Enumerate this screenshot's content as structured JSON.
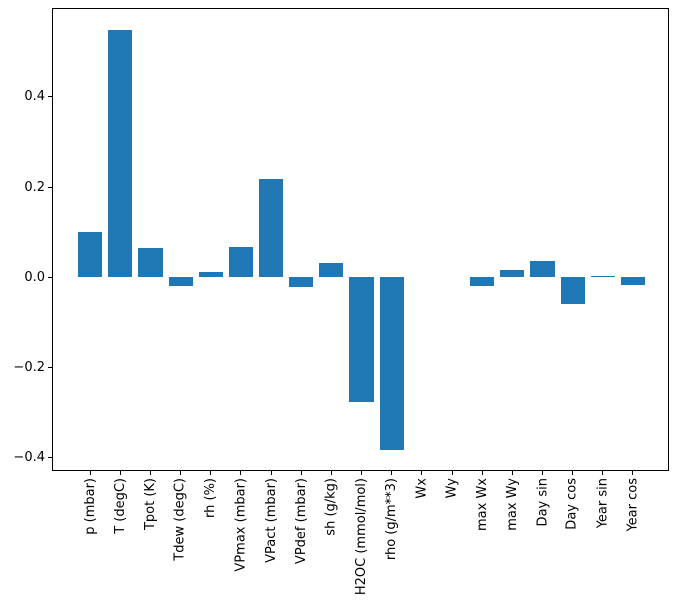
{
  "chart_data": {
    "type": "bar",
    "title": "",
    "xlabel": "",
    "ylabel": "",
    "grid": false,
    "legend_position": "none",
    "bar_color": "#1f77b4",
    "ylim": [
      -0.429,
      0.596
    ],
    "yticks": [
      0.4,
      0.2,
      0.0,
      -0.2,
      -0.4
    ],
    "ytick_labels": [
      "0.4",
      "0.2",
      "0.0",
      "−0.2",
      "−0.4"
    ],
    "x_tick_rotation": 90,
    "categories": [
      "p (mbar)",
      "T (degC)",
      "Tpot (K)",
      "Tdew (degC)",
      "rh (%)",
      "VPmax (mbar)",
      "VPact (mbar)",
      "VPdef (mbar)",
      "sh (g/kg)",
      "H2OC (mmol/mol)",
      "rho (g/m**3)",
      "Wx",
      "Wy",
      "max Wx",
      "max Wy",
      "Day sin",
      "Day cos",
      "Year sin",
      "Year cos"
    ],
    "values": [
      0.1,
      0.548,
      0.064,
      -0.02,
      0.011,
      0.068,
      0.217,
      -0.022,
      0.031,
      -0.276,
      -0.382,
      0.0,
      0.0,
      -0.019,
      0.017,
      0.035,
      -0.06,
      0.002,
      -0.017
    ]
  }
}
